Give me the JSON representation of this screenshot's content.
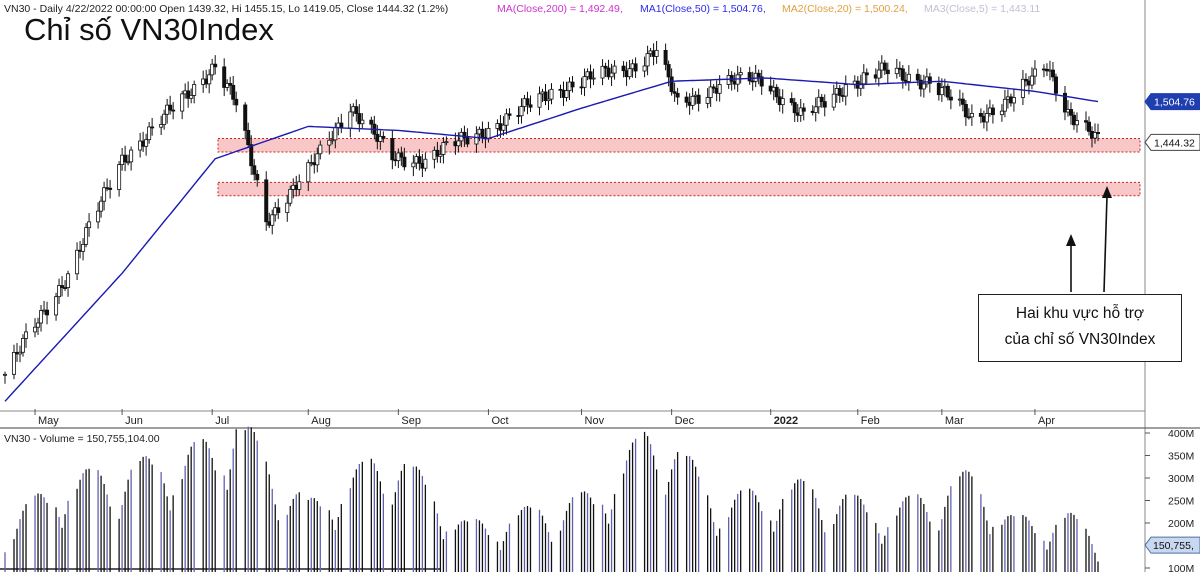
{
  "header": {
    "symbol_line": "VN30 - Daily 4/22/2022 00:00:00 Open 1439.32, Hi 1455.15, Lo 1419.05, Close 1444.32 (1.2%)",
    "ma200": "MA(Close,200) = 1,492.49,",
    "ma50": "MA1(Close,50) = 1,504.76,",
    "ma20": "MA2(Close,20) = 1,500.24,",
    "ma5": "MA3(Close,5) = 1,443.11"
  },
  "title": "Chỉ số VN30Index",
  "annotation": {
    "line1": "Hai khu vực hỗ trợ",
    "line2": "của chỉ số VN30Index"
  },
  "volume_header": "VN30 - Volume = 150,755,104.00",
  "colors": {
    "ma200": "#cc33cc",
    "ma50": "#2a2aee",
    "ma20": "#e0a040",
    "ma5": "#c0c0d8",
    "ma_line": "#1a1ab0",
    "zone_fill": "#f8c8c8",
    "zone_border": "#d02020",
    "volume_bar": "#111111",
    "volume_bar_alt": "#6060b0",
    "price_tag": "#1f3fb0"
  },
  "chart_data": [
    {
      "type": "candlestick",
      "title": "Chỉ số VN30Index",
      "x_tick_labels": [
        "May",
        "Jun",
        "Jul",
        "Aug",
        "Sep",
        "Oct",
        "Nov",
        "Dec",
        "2022",
        "Feb",
        "Mar",
        "Apr"
      ],
      "axis_price_labels": [
        "1,504.76",
        "1,444.32"
      ],
      "y_range_approx": [
        1050,
        1620
      ],
      "price_path_approx": [
        {
          "date": "2021-04-23",
          "close": 1100
        },
        {
          "date": "2021-05-14",
          "close": 1250
        },
        {
          "date": "2021-06-01",
          "close": 1420
        },
        {
          "date": "2021-06-15",
          "close": 1480
        },
        {
          "date": "2021-07-02",
          "close": 1560
        },
        {
          "date": "2021-07-09",
          "close": 1500
        },
        {
          "date": "2021-07-19",
          "close": 1330
        },
        {
          "date": "2021-08-02",
          "close": 1400
        },
        {
          "date": "2021-08-16",
          "close": 1500
        },
        {
          "date": "2021-08-30",
          "close": 1420
        },
        {
          "date": "2021-09-10",
          "close": 1420
        },
        {
          "date": "2021-09-24",
          "close": 1450
        },
        {
          "date": "2021-10-08",
          "close": 1480
        },
        {
          "date": "2021-10-22",
          "close": 1520
        },
        {
          "date": "2021-11-05",
          "close": 1540
        },
        {
          "date": "2021-11-19",
          "close": 1560
        },
        {
          "date": "2021-11-26",
          "close": 1580
        },
        {
          "date": "2021-12-03",
          "close": 1500
        },
        {
          "date": "2021-12-17",
          "close": 1530
        },
        {
          "date": "2021-12-31",
          "close": 1540
        },
        {
          "date": "2022-01-14",
          "close": 1480
        },
        {
          "date": "2022-01-28",
          "close": 1530
        },
        {
          "date": "2022-02-11",
          "close": 1550
        },
        {
          "date": "2022-02-25",
          "close": 1535
        },
        {
          "date": "2022-03-11",
          "close": 1480
        },
        {
          "date": "2022-03-25",
          "close": 1510
        },
        {
          "date": "2022-04-05",
          "close": 1560
        },
        {
          "date": "2022-04-12",
          "close": 1490
        },
        {
          "date": "2022-04-22",
          "close": 1444.32
        }
      ],
      "ma50_path_approx": [
        {
          "date": "2021-04-23",
          "close": 1060
        },
        {
          "date": "2021-06-01",
          "close": 1250
        },
        {
          "date": "2021-07-02",
          "close": 1420
        },
        {
          "date": "2021-08-02",
          "close": 1468
        },
        {
          "date": "2021-09-01",
          "close": 1462
        },
        {
          "date": "2021-10-01",
          "close": 1450
        },
        {
          "date": "2021-11-01",
          "close": 1495
        },
        {
          "date": "2021-12-01",
          "close": 1535
        },
        {
          "date": "2022-01-01",
          "close": 1540
        },
        {
          "date": "2022-02-01",
          "close": 1530
        },
        {
          "date": "2022-03-01",
          "close": 1535
        },
        {
          "date": "2022-04-01",
          "close": 1520
        },
        {
          "date": "2022-04-22",
          "close": 1504.76
        }
      ],
      "support_zones_approx": [
        [
          1430,
          1450
        ],
        [
          1365,
          1385
        ]
      ]
    },
    {
      "type": "bar",
      "title": "VN30 - Volume = 150,755,104.00",
      "y_tick_labels": [
        "100M",
        "150M",
        "200M",
        "250M",
        "300M",
        "350M",
        "400M"
      ],
      "ylim": [
        100000000,
        400000000
      ],
      "last_value_label": "150,755,",
      "value_path_approx": [
        {
          "date": "2021-04-23",
          "volume": 180000000
        },
        {
          "date": "2021-05-14",
          "volume": 260000000
        },
        {
          "date": "2021-06-01",
          "volume": 280000000
        },
        {
          "date": "2021-06-15",
          "volume": 300000000
        },
        {
          "date": "2021-07-02",
          "volume": 330000000
        },
        {
          "date": "2021-07-09",
          "volume": 390000000
        },
        {
          "date": "2021-07-19",
          "volume": 300000000
        },
        {
          "date": "2021-08-02",
          "volume": 210000000
        },
        {
          "date": "2021-08-30",
          "volume": 320000000
        },
        {
          "date": "2021-09-24",
          "volume": 170000000
        },
        {
          "date": "2021-10-08",
          "volume": 190000000
        },
        {
          "date": "2021-11-05",
          "volume": 230000000
        },
        {
          "date": "2021-11-26",
          "volume": 370000000
        },
        {
          "date": "2021-12-17",
          "volume": 220000000
        },
        {
          "date": "2022-01-14",
          "volume": 250000000
        },
        {
          "date": "2022-02-11",
          "volume": 200000000
        },
        {
          "date": "2022-03-11",
          "volume": 270000000
        },
        {
          "date": "2022-03-25",
          "volume": 180000000
        },
        {
          "date": "2022-04-12",
          "volume": 190000000
        },
        {
          "date": "2022-04-22",
          "volume": 150755104
        }
      ]
    }
  ]
}
